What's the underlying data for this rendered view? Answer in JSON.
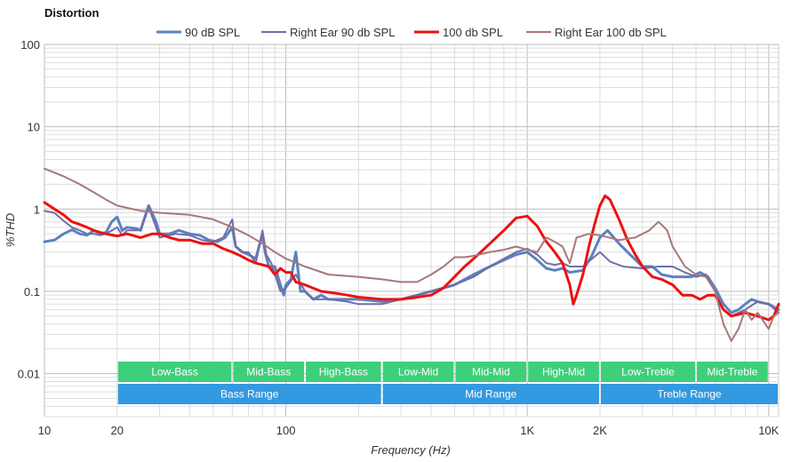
{
  "chart_data": {
    "type": "line",
    "title": "Distortion",
    "xlabel": "Frequency (Hz)",
    "ylabel": "%THD",
    "x_scale": "log",
    "y_scale": "log",
    "xlim": [
      10,
      11000
    ],
    "ylim": [
      0.003,
      100
    ],
    "grid": true,
    "legend_position": "top",
    "x_ticks": [
      {
        "value": 10,
        "label": "10"
      },
      {
        "value": 20,
        "label": "20"
      },
      {
        "value": 100,
        "label": "100"
      },
      {
        "value": 1000,
        "label": "1K"
      },
      {
        "value": 2000,
        "label": "2K"
      },
      {
        "value": 10000,
        "label": "10K"
      }
    ],
    "y_ticks": [
      {
        "value": 100,
        "label": "100"
      },
      {
        "value": 10,
        "label": "10"
      },
      {
        "value": 1,
        "label": "1"
      },
      {
        "value": 0.1,
        "label": "0.1"
      },
      {
        "value": 0.01,
        "label": "0.01"
      }
    ],
    "series": [
      {
        "name": "90 dB SPL",
        "color": "#5b82c0",
        "stroke_width": 3,
        "points": [
          [
            10,
            0.4
          ],
          [
            11,
            0.42
          ],
          [
            12,
            0.5
          ],
          [
            13,
            0.56
          ],
          [
            14,
            0.5
          ],
          [
            15,
            0.48
          ],
          [
            16,
            0.55
          ],
          [
            17,
            0.5
          ],
          [
            18,
            0.52
          ],
          [
            19,
            0.7
          ],
          [
            20,
            0.8
          ],
          [
            21,
            0.55
          ],
          [
            22,
            0.6
          ],
          [
            24,
            0.58
          ],
          [
            25,
            0.55
          ],
          [
            27,
            1.1
          ],
          [
            29,
            0.7
          ],
          [
            30,
            0.5
          ],
          [
            33,
            0.5
          ],
          [
            36,
            0.55
          ],
          [
            40,
            0.5
          ],
          [
            44,
            0.48
          ],
          [
            48,
            0.42
          ],
          [
            52,
            0.4
          ],
          [
            56,
            0.45
          ],
          [
            60,
            0.6
          ],
          [
            62,
            0.35
          ],
          [
            66,
            0.3
          ],
          [
            70,
            0.28
          ],
          [
            75,
            0.25
          ],
          [
            80,
            0.5
          ],
          [
            82,
            0.3
          ],
          [
            85,
            0.2
          ],
          [
            90,
            0.2
          ],
          [
            95,
            0.12
          ],
          [
            98,
            0.09
          ],
          [
            100,
            0.12
          ],
          [
            105,
            0.14
          ],
          [
            110,
            0.3
          ],
          [
            115,
            0.1
          ],
          [
            120,
            0.1
          ],
          [
            130,
            0.08
          ],
          [
            140,
            0.09
          ],
          [
            150,
            0.08
          ],
          [
            170,
            0.08
          ],
          [
            200,
            0.08
          ],
          [
            250,
            0.075
          ],
          [
            300,
            0.08
          ],
          [
            350,
            0.09
          ],
          [
            400,
            0.1
          ],
          [
            500,
            0.12
          ],
          [
            600,
            0.16
          ],
          [
            700,
            0.2
          ],
          [
            800,
            0.24
          ],
          [
            900,
            0.28
          ],
          [
            1000,
            0.3
          ],
          [
            1100,
            0.24
          ],
          [
            1200,
            0.19
          ],
          [
            1300,
            0.18
          ],
          [
            1400,
            0.19
          ],
          [
            1500,
            0.17
          ],
          [
            1700,
            0.18
          ],
          [
            1850,
            0.27
          ],
          [
            2000,
            0.45
          ],
          [
            2150,
            0.55
          ],
          [
            2400,
            0.38
          ],
          [
            2700,
            0.27
          ],
          [
            3000,
            0.2
          ],
          [
            3300,
            0.2
          ],
          [
            3600,
            0.16
          ],
          [
            4000,
            0.15
          ],
          [
            4400,
            0.15
          ],
          [
            4800,
            0.15
          ],
          [
            5200,
            0.17
          ],
          [
            5600,
            0.15
          ],
          [
            6000,
            0.11
          ],
          [
            6500,
            0.07
          ],
          [
            7000,
            0.055
          ],
          [
            7500,
            0.06
          ],
          [
            8000,
            0.07
          ],
          [
            8500,
            0.08
          ],
          [
            9000,
            0.075
          ],
          [
            10000,
            0.07
          ],
          [
            11000,
            0.06
          ]
        ]
      },
      {
        "name": "Right Ear 90 db SPL",
        "color": "#6e6fa6",
        "stroke_width": 2,
        "points": [
          [
            10,
            0.95
          ],
          [
            11,
            0.9
          ],
          [
            12,
            0.72
          ],
          [
            13,
            0.6
          ],
          [
            14,
            0.55
          ],
          [
            15,
            0.5
          ],
          [
            16,
            0.5
          ],
          [
            17,
            0.48
          ],
          [
            18,
            0.5
          ],
          [
            20,
            0.6
          ],
          [
            21,
            0.48
          ],
          [
            22,
            0.55
          ],
          [
            25,
            0.55
          ],
          [
            27,
            1.05
          ],
          [
            29,
            0.6
          ],
          [
            30,
            0.45
          ],
          [
            35,
            0.5
          ],
          [
            40,
            0.48
          ],
          [
            45,
            0.42
          ],
          [
            50,
            0.4
          ],
          [
            55,
            0.45
          ],
          [
            60,
            0.75
          ],
          [
            62,
            0.35
          ],
          [
            66,
            0.3
          ],
          [
            70,
            0.3
          ],
          [
            75,
            0.22
          ],
          [
            80,
            0.55
          ],
          [
            83,
            0.28
          ],
          [
            87,
            0.22
          ],
          [
            95,
            0.1
          ],
          [
            100,
            0.11
          ],
          [
            110,
            0.16
          ],
          [
            120,
            0.1
          ],
          [
            130,
            0.08
          ],
          [
            150,
            0.08
          ],
          [
            180,
            0.075
          ],
          [
            200,
            0.07
          ],
          [
            250,
            0.07
          ],
          [
            300,
            0.08
          ],
          [
            400,
            0.1
          ],
          [
            500,
            0.12
          ],
          [
            600,
            0.15
          ],
          [
            700,
            0.2
          ],
          [
            800,
            0.25
          ],
          [
            900,
            0.3
          ],
          [
            1000,
            0.33
          ],
          [
            1100,
            0.28
          ],
          [
            1200,
            0.22
          ],
          [
            1300,
            0.21
          ],
          [
            1400,
            0.22
          ],
          [
            1500,
            0.2
          ],
          [
            1700,
            0.2
          ],
          [
            2000,
            0.3
          ],
          [
            2200,
            0.23
          ],
          [
            2500,
            0.2
          ],
          [
            3000,
            0.19
          ],
          [
            3500,
            0.2
          ],
          [
            4000,
            0.2
          ],
          [
            4500,
            0.17
          ],
          [
            5000,
            0.15
          ],
          [
            5500,
            0.16
          ],
          [
            6000,
            0.1
          ],
          [
            6500,
            0.06
          ],
          [
            7000,
            0.05
          ],
          [
            8000,
            0.06
          ],
          [
            9000,
            0.075
          ],
          [
            10000,
            0.07
          ],
          [
            11000,
            0.055
          ]
        ]
      },
      {
        "name": "100 db SPL",
        "color": "#ee1111",
        "stroke_width": 3,
        "points": [
          [
            10,
            1.2
          ],
          [
            11,
            1.0
          ],
          [
            12,
            0.85
          ],
          [
            13,
            0.7
          ],
          [
            14,
            0.65
          ],
          [
            15,
            0.6
          ],
          [
            16,
            0.55
          ],
          [
            17,
            0.52
          ],
          [
            18,
            0.5
          ],
          [
            20,
            0.47
          ],
          [
            22,
            0.5
          ],
          [
            25,
            0.45
          ],
          [
            28,
            0.5
          ],
          [
            30,
            0.5
          ],
          [
            33,
            0.45
          ],
          [
            36,
            0.42
          ],
          [
            40,
            0.42
          ],
          [
            45,
            0.38
          ],
          [
            50,
            0.38
          ],
          [
            55,
            0.33
          ],
          [
            60,
            0.3
          ],
          [
            65,
            0.27
          ],
          [
            70,
            0.24
          ],
          [
            75,
            0.22
          ],
          [
            80,
            0.21
          ],
          [
            85,
            0.2
          ],
          [
            90,
            0.16
          ],
          [
            95,
            0.19
          ],
          [
            100,
            0.17
          ],
          [
            105,
            0.17
          ],
          [
            110,
            0.13
          ],
          [
            120,
            0.12
          ],
          [
            140,
            0.1
          ],
          [
            160,
            0.095
          ],
          [
            180,
            0.09
          ],
          [
            200,
            0.085
          ],
          [
            250,
            0.08
          ],
          [
            300,
            0.08
          ],
          [
            350,
            0.085
          ],
          [
            400,
            0.09
          ],
          [
            450,
            0.11
          ],
          [
            500,
            0.15
          ],
          [
            550,
            0.2
          ],
          [
            600,
            0.25
          ],
          [
            700,
            0.38
          ],
          [
            800,
            0.55
          ],
          [
            900,
            0.78
          ],
          [
            1000,
            0.82
          ],
          [
            1100,
            0.62
          ],
          [
            1200,
            0.4
          ],
          [
            1300,
            0.3
          ],
          [
            1400,
            0.22
          ],
          [
            1500,
            0.12
          ],
          [
            1550,
            0.07
          ],
          [
            1600,
            0.09
          ],
          [
            1700,
            0.16
          ],
          [
            1800,
            0.35
          ],
          [
            1900,
            0.65
          ],
          [
            2000,
            1.1
          ],
          [
            2100,
            1.45
          ],
          [
            2200,
            1.3
          ],
          [
            2400,
            0.75
          ],
          [
            2600,
            0.42
          ],
          [
            2800,
            0.28
          ],
          [
            3000,
            0.2
          ],
          [
            3300,
            0.15
          ],
          [
            3600,
            0.14
          ],
          [
            4000,
            0.12
          ],
          [
            4400,
            0.09
          ],
          [
            4800,
            0.09
          ],
          [
            5200,
            0.08
          ],
          [
            5600,
            0.09
          ],
          [
            6000,
            0.09
          ],
          [
            6500,
            0.06
          ],
          [
            7000,
            0.05
          ],
          [
            8000,
            0.055
          ],
          [
            9000,
            0.05
          ],
          [
            10000,
            0.045
          ],
          [
            10500,
            0.05
          ],
          [
            11000,
            0.07
          ]
        ]
      },
      {
        "name": "Right Ear 100 db SPL",
        "color": "#a87777",
        "stroke_width": 2,
        "points": [
          [
            10,
            3.1
          ],
          [
            12,
            2.5
          ],
          [
            14,
            2.0
          ],
          [
            16,
            1.6
          ],
          [
            18,
            1.3
          ],
          [
            20,
            1.1
          ],
          [
            25,
            0.95
          ],
          [
            30,
            0.9
          ],
          [
            40,
            0.85
          ],
          [
            50,
            0.75
          ],
          [
            60,
            0.6
          ],
          [
            70,
            0.48
          ],
          [
            80,
            0.38
          ],
          [
            90,
            0.3
          ],
          [
            100,
            0.25
          ],
          [
            120,
            0.2
          ],
          [
            150,
            0.16
          ],
          [
            200,
            0.15
          ],
          [
            250,
            0.14
          ],
          [
            300,
            0.13
          ],
          [
            350,
            0.13
          ],
          [
            400,
            0.16
          ],
          [
            450,
            0.2
          ],
          [
            500,
            0.26
          ],
          [
            550,
            0.26
          ],
          [
            600,
            0.27
          ],
          [
            700,
            0.3
          ],
          [
            800,
            0.32
          ],
          [
            900,
            0.35
          ],
          [
            1000,
            0.32
          ],
          [
            1100,
            0.3
          ],
          [
            1200,
            0.45
          ],
          [
            1300,
            0.4
          ],
          [
            1400,
            0.35
          ],
          [
            1500,
            0.22
          ],
          [
            1600,
            0.45
          ],
          [
            1800,
            0.5
          ],
          [
            2000,
            0.48
          ],
          [
            2400,
            0.42
          ],
          [
            2800,
            0.45
          ],
          [
            3200,
            0.55
          ],
          [
            3500,
            0.7
          ],
          [
            3800,
            0.55
          ],
          [
            4000,
            0.35
          ],
          [
            4500,
            0.2
          ],
          [
            5000,
            0.16
          ],
          [
            5500,
            0.15
          ],
          [
            6000,
            0.1
          ],
          [
            6500,
            0.04
          ],
          [
            7000,
            0.025
          ],
          [
            7500,
            0.035
          ],
          [
            8000,
            0.06
          ],
          [
            8500,
            0.045
          ],
          [
            9000,
            0.055
          ],
          [
            10000,
            0.035
          ],
          [
            10500,
            0.05
          ],
          [
            11000,
            0.055
          ]
        ]
      }
    ],
    "bands_row1": [
      {
        "label": "Low-Bass",
        "from": 20,
        "to": 60
      },
      {
        "label": "Mid-Bass",
        "from": 60,
        "to": 120
      },
      {
        "label": "High-Bass",
        "from": 120,
        "to": 250
      },
      {
        "label": "Low-Mid",
        "from": 250,
        "to": 500
      },
      {
        "label": "Mid-Mid",
        "from": 500,
        "to": 1000
      },
      {
        "label": "High-Mid",
        "from": 1000,
        "to": 2000
      },
      {
        "label": "Low-Treble",
        "from": 2000,
        "to": 5000
      },
      {
        "label": "Mid-Treble",
        "from": 5000,
        "to": 10000
      }
    ],
    "bands_row2": [
      {
        "label": "Bass Range",
        "from": 20,
        "to": 250
      },
      {
        "label": "Mid Range",
        "from": 250,
        "to": 2000
      },
      {
        "label": "Treble Range",
        "from": 2000,
        "to": 11000
      }
    ],
    "band_color_row1": "#3ecf7a",
    "band_color_row2": "#3399e0"
  }
}
